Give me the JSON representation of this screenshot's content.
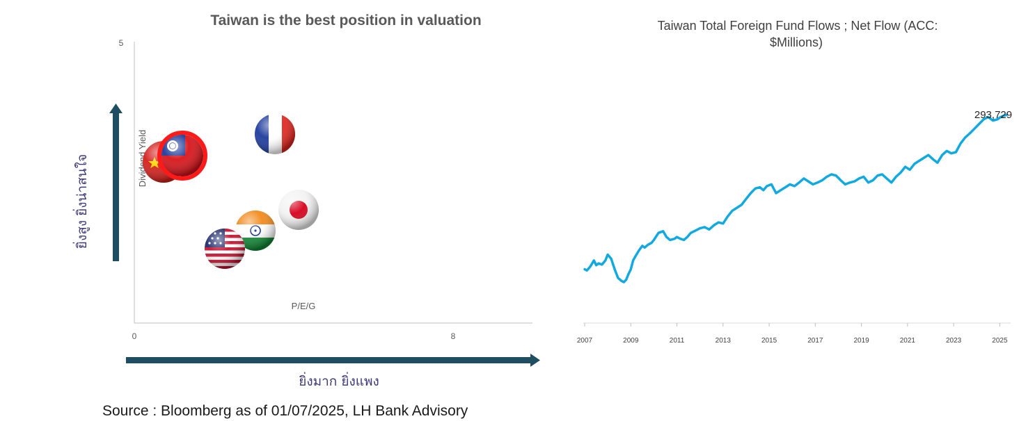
{
  "source_note": "Source : Bloomberg as of 01/07/2025, LH Bank Advisory",
  "colors": {
    "arrow": "#1f4e63",
    "line": "#12a9e0",
    "axis": "#bfbfbf",
    "thai_text": "#3d3a7a"
  },
  "chart_data": [
    {
      "type": "scatter",
      "title": "Taiwan is the best position in valuation",
      "xlabel": "P/E/G",
      "ylabel": "Dividend Yield",
      "xlim": [
        0,
        10
      ],
      "ylim": [
        0,
        5
      ],
      "x_ticks": [
        "0",
        "8"
      ],
      "y_ticks": [
        "5"
      ],
      "x_arrow_label": "ยิ่งมาก ยิ่งแพง",
      "y_arrow_label": "ยิ่งสูง ยิ่งน่าสนใจ",
      "grid": false,
      "points": [
        {
          "flag": "china-flag-icon",
          "x": 0.7,
          "y": 2.9
        },
        {
          "flag": "taiwan-flag-icon",
          "x": 1.2,
          "y": 3.0,
          "highlight": true
        },
        {
          "flag": "france-flag-icon",
          "x": 3.5,
          "y": 3.4
        },
        {
          "flag": "japan-flag-icon",
          "x": 4.1,
          "y": 2.0
        },
        {
          "flag": "india-flag-icon",
          "x": 3.1,
          "y": 1.65
        },
        {
          "flag": "usa-flag-icon",
          "x": 2.3,
          "y": 1.35
        }
      ]
    },
    {
      "type": "line",
      "title": "Taiwan Total Foreign Fund Flows ; Net Flow (ACC: $Millions)",
      "x_ticks": [
        "2007",
        "2009",
        "2011",
        "2013",
        "2015",
        "2017",
        "2019",
        "2021",
        "2023",
        "2025"
      ],
      "xlim": [
        2007.0,
        2025.35
      ],
      "ylim": [
        -50000,
        300000
      ],
      "last_value_label": "293,729",
      "series": [
        {
          "x": [
            2007.0,
            2007.1,
            2007.25,
            2007.4,
            2007.5,
            2007.6,
            2007.75,
            2007.9,
            2008.0,
            2008.15,
            2008.3,
            2008.45,
            2008.6,
            2008.7,
            2008.8,
            2008.9,
            2009.0,
            2009.1,
            2009.2,
            2009.35,
            2009.5,
            2009.6,
            2009.75,
            2009.9,
            2010.0,
            2010.2,
            2010.4,
            2010.55,
            2010.7,
            2010.9,
            2011.0,
            2011.15,
            2011.3,
            2011.45,
            2011.6,
            2011.75,
            2011.9,
            2012.0,
            2012.2,
            2012.4,
            2012.6,
            2012.8,
            2013.0,
            2013.2,
            2013.4,
            2013.6,
            2013.8,
            2014.0,
            2014.2,
            2014.4,
            2014.6,
            2014.75,
            2014.9,
            2015.1,
            2015.3,
            2015.5,
            2015.7,
            2015.9,
            2016.1,
            2016.3,
            2016.5,
            2016.7,
            2016.9,
            2017.1,
            2017.3,
            2017.5,
            2017.7,
            2017.9,
            2018.1,
            2018.3,
            2018.5,
            2018.7,
            2018.9,
            2019.1,
            2019.3,
            2019.5,
            2019.7,
            2019.9,
            2020.1,
            2020.3,
            2020.5,
            2020.7,
            2020.9,
            2021.1,
            2021.3,
            2021.5,
            2021.7,
            2021.9,
            2022.1,
            2022.3,
            2022.5,
            2022.7,
            2022.9,
            2023.1,
            2023.3,
            2023.5,
            2023.7,
            2023.9,
            2024.1,
            2024.3,
            2024.5,
            2024.7,
            2024.9,
            2025.0,
            2025.1,
            2025.2,
            2025.3
          ],
          "values": [
            30000,
            28000,
            35000,
            45000,
            37000,
            40000,
            38000,
            45000,
            55000,
            48000,
            30000,
            15000,
            10000,
            8000,
            12000,
            22000,
            30000,
            45000,
            52000,
            62000,
            70000,
            67000,
            72000,
            75000,
            80000,
            92000,
            95000,
            85000,
            80000,
            82000,
            85000,
            82000,
            80000,
            85000,
            92000,
            95000,
            98000,
            100000,
            102000,
            98000,
            105000,
            110000,
            108000,
            120000,
            130000,
            135000,
            140000,
            150000,
            160000,
            168000,
            170000,
            165000,
            172000,
            175000,
            160000,
            165000,
            170000,
            175000,
            172000,
            178000,
            185000,
            180000,
            175000,
            178000,
            182000,
            188000,
            192000,
            190000,
            182000,
            175000,
            178000,
            180000,
            185000,
            188000,
            178000,
            182000,
            190000,
            192000,
            185000,
            178000,
            188000,
            195000,
            205000,
            200000,
            210000,
            215000,
            220000,
            225000,
            218000,
            212000,
            225000,
            232000,
            228000,
            230000,
            245000,
            255000,
            262000,
            270000,
            278000,
            286000,
            290000,
            284000,
            286000,
            289000,
            291000,
            292500,
            293729
          ]
        }
      ]
    }
  ]
}
